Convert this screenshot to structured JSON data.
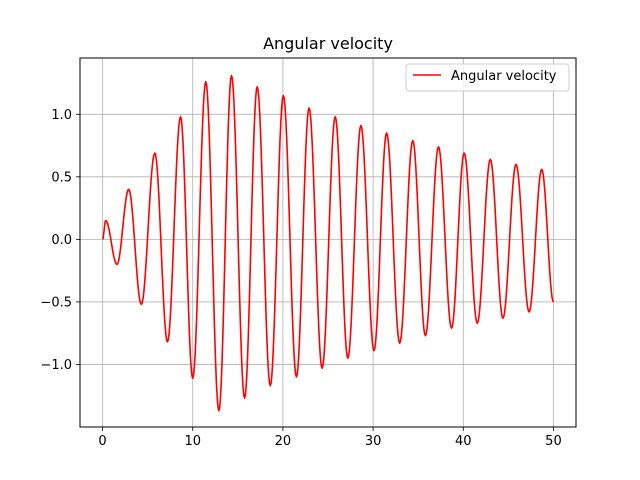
{
  "chart_data": {
    "type": "line",
    "title": "Angular velocity",
    "xlabel": "",
    "ylabel": "",
    "xlim": [
      -2.5,
      52.5
    ],
    "ylim": [
      -1.5,
      1.45
    ],
    "xticks": [
      0,
      10,
      20,
      30,
      40,
      50
    ],
    "xtick_labels": [
      "0",
      "10",
      "20",
      "30",
      "40",
      "50"
    ],
    "yticks": [
      -1.0,
      -0.5,
      0.0,
      0.5,
      1.0
    ],
    "ytick_labels": [
      "−1.0",
      "−0.5",
      "0.0",
      "0.5",
      "1.0"
    ],
    "grid": true,
    "legend": {
      "placement": "upper-right",
      "entries": [
        "Angular velocity"
      ]
    },
    "series": [
      {
        "name": "Angular velocity",
        "color": "#ff0000",
        "extrema": [
          {
            "x": 0.0,
            "y": 0.0
          },
          {
            "x": 0.35,
            "y": 0.15
          },
          {
            "x": 1.6,
            "y": -0.2
          },
          {
            "x": 2.9,
            "y": 0.4
          },
          {
            "x": 4.3,
            "y": -0.52
          },
          {
            "x": 5.8,
            "y": 0.69
          },
          {
            "x": 7.2,
            "y": -0.82
          },
          {
            "x": 8.65,
            "y": 0.98
          },
          {
            "x": 10.0,
            "y": -1.11
          },
          {
            "x": 11.45,
            "y": 1.26
          },
          {
            "x": 12.9,
            "y": -1.37
          },
          {
            "x": 14.3,
            "y": 1.31
          },
          {
            "x": 15.75,
            "y": -1.27
          },
          {
            "x": 17.15,
            "y": 1.22
          },
          {
            "x": 18.6,
            "y": -1.17
          },
          {
            "x": 20.05,
            "y": 1.15
          },
          {
            "x": 21.5,
            "y": -1.1
          },
          {
            "x": 22.9,
            "y": 1.05
          },
          {
            "x": 24.35,
            "y": -1.03
          },
          {
            "x": 25.8,
            "y": 0.98
          },
          {
            "x": 27.2,
            "y": -0.95
          },
          {
            "x": 28.65,
            "y": 0.91
          },
          {
            "x": 30.1,
            "y": -0.89
          },
          {
            "x": 31.5,
            "y": 0.85
          },
          {
            "x": 32.95,
            "y": -0.83
          },
          {
            "x": 34.4,
            "y": 0.79
          },
          {
            "x": 35.8,
            "y": -0.77
          },
          {
            "x": 37.25,
            "y": 0.74
          },
          {
            "x": 38.7,
            "y": -0.71
          },
          {
            "x": 40.1,
            "y": 0.69
          },
          {
            "x": 41.55,
            "y": -0.67
          },
          {
            "x": 43.0,
            "y": 0.64
          },
          {
            "x": 44.4,
            "y": -0.63
          },
          {
            "x": 45.85,
            "y": 0.6
          },
          {
            "x": 47.3,
            "y": -0.58
          },
          {
            "x": 48.7,
            "y": 0.56
          },
          {
            "x": 50.0,
            "y": -0.5
          }
        ]
      }
    ]
  }
}
